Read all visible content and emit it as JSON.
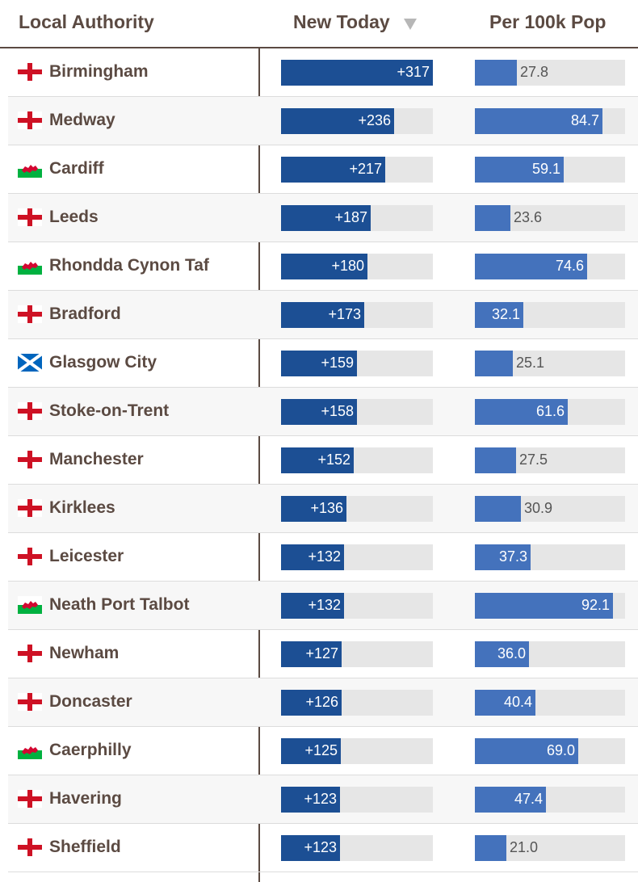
{
  "header": {
    "local_authority": "Local Authority",
    "new_today": "New Today",
    "per_100k": "Per 100k Pop"
  },
  "colors": {
    "header_text": "#5b4a42",
    "new_today_bar": "#1c4f94",
    "per_100k_bar": "#4472bc",
    "bar_track": "#e6e6e6",
    "row_alt_bg": "#f7f7f7"
  },
  "chart_data": {
    "type": "table",
    "columns": [
      "Local Authority",
      "New Today",
      "Per 100k Pop"
    ],
    "new_today_max": 317,
    "per_100k_max": 100,
    "rows": [
      {
        "name": "Birmingham",
        "nation": "england",
        "flag_icon": "england-flag-icon",
        "new_today": 317,
        "new_today_label": "+317",
        "per_100k": 27.8,
        "per_100k_label": "27.8"
      },
      {
        "name": "Medway",
        "nation": "england",
        "flag_icon": "england-flag-icon",
        "new_today": 236,
        "new_today_label": "+236",
        "per_100k": 84.7,
        "per_100k_label": "84.7"
      },
      {
        "name": "Cardiff",
        "nation": "wales",
        "flag_icon": "wales-flag-icon",
        "new_today": 217,
        "new_today_label": "+217",
        "per_100k": 59.1,
        "per_100k_label": "59.1"
      },
      {
        "name": "Leeds",
        "nation": "england",
        "flag_icon": "england-flag-icon",
        "new_today": 187,
        "new_today_label": "+187",
        "per_100k": 23.6,
        "per_100k_label": "23.6"
      },
      {
        "name": "Rhondda Cynon Taf",
        "nation": "wales",
        "flag_icon": "wales-flag-icon",
        "new_today": 180,
        "new_today_label": "+180",
        "per_100k": 74.6,
        "per_100k_label": "74.6"
      },
      {
        "name": "Bradford",
        "nation": "england",
        "flag_icon": "england-flag-icon",
        "new_today": 173,
        "new_today_label": "+173",
        "per_100k": 32.1,
        "per_100k_label": "32.1"
      },
      {
        "name": "Glasgow City",
        "nation": "scotland",
        "flag_icon": "scotland-flag-icon",
        "new_today": 159,
        "new_today_label": "+159",
        "per_100k": 25.1,
        "per_100k_label": "25.1"
      },
      {
        "name": "Stoke-on-Trent",
        "nation": "england",
        "flag_icon": "england-flag-icon",
        "new_today": 158,
        "new_today_label": "+158",
        "per_100k": 61.6,
        "per_100k_label": "61.6"
      },
      {
        "name": "Manchester",
        "nation": "england",
        "flag_icon": "england-flag-icon",
        "new_today": 152,
        "new_today_label": "+152",
        "per_100k": 27.5,
        "per_100k_label": "27.5"
      },
      {
        "name": "Kirklees",
        "nation": "england",
        "flag_icon": "england-flag-icon",
        "new_today": 136,
        "new_today_label": "+136",
        "per_100k": 30.9,
        "per_100k_label": "30.9"
      },
      {
        "name": "Leicester",
        "nation": "england",
        "flag_icon": "england-flag-icon",
        "new_today": 132,
        "new_today_label": "+132",
        "per_100k": 37.3,
        "per_100k_label": "37.3"
      },
      {
        "name": "Neath Port Talbot",
        "nation": "wales",
        "flag_icon": "wales-flag-icon",
        "new_today": 132,
        "new_today_label": "+132",
        "per_100k": 92.1,
        "per_100k_label": "92.1"
      },
      {
        "name": "Newham",
        "nation": "england",
        "flag_icon": "england-flag-icon",
        "new_today": 127,
        "new_today_label": "+127",
        "per_100k": 36.0,
        "per_100k_label": "36.0"
      },
      {
        "name": "Doncaster",
        "nation": "england",
        "flag_icon": "england-flag-icon",
        "new_today": 126,
        "new_today_label": "+126",
        "per_100k": 40.4,
        "per_100k_label": "40.4"
      },
      {
        "name": "Caerphilly",
        "nation": "wales",
        "flag_icon": "wales-flag-icon",
        "new_today": 125,
        "new_today_label": "+125",
        "per_100k": 69.0,
        "per_100k_label": "69.0"
      },
      {
        "name": "Havering",
        "nation": "england",
        "flag_icon": "england-flag-icon",
        "new_today": 123,
        "new_today_label": "+123",
        "per_100k": 47.4,
        "per_100k_label": "47.4"
      },
      {
        "name": "Sheffield",
        "nation": "england",
        "flag_icon": "england-flag-icon",
        "new_today": 123,
        "new_today_label": "+123",
        "per_100k": 21.0,
        "per_100k_label": "21.0"
      }
    ]
  }
}
